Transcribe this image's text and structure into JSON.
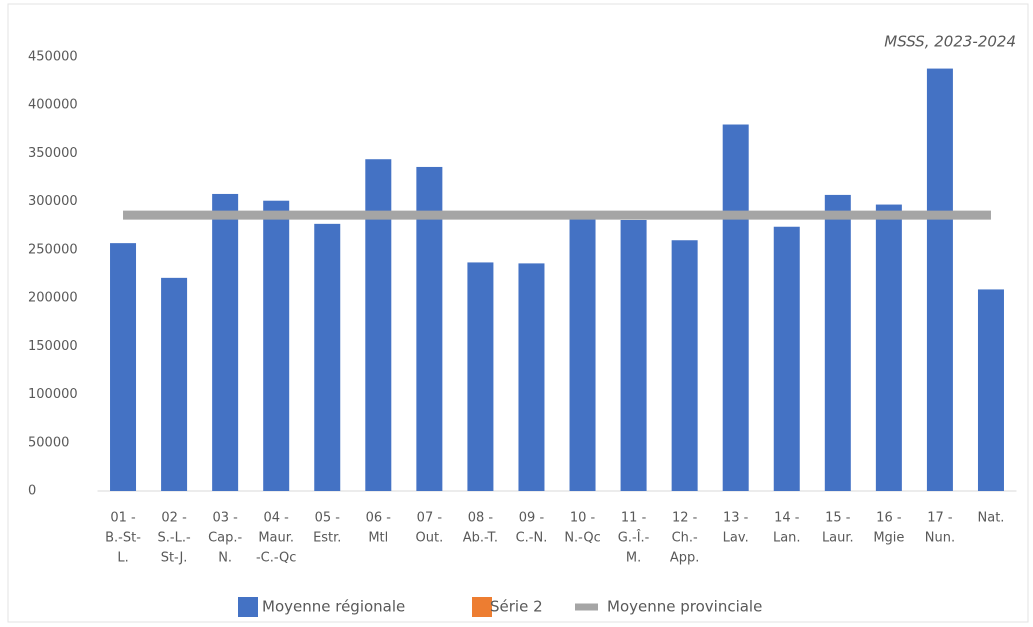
{
  "chart_data": {
    "type": "bar",
    "annotation": "MSSS, 2023-2024",
    "categories": [
      [
        "01 -",
        "B.-St-",
        "L."
      ],
      [
        "02 -",
        "S.-L.-",
        "St-J."
      ],
      [
        "03 -",
        "Cap.-",
        "N."
      ],
      [
        "04 -",
        "Maur.",
        "-C.-Qc"
      ],
      [
        "05 -",
        "Estr."
      ],
      [
        "06 -",
        "Mtl"
      ],
      [
        "07 -",
        "Out."
      ],
      [
        "08 -",
        "Ab.-T."
      ],
      [
        "09 -",
        "C.-N."
      ],
      [
        "10 -",
        "N.-Qc"
      ],
      [
        "11 -",
        "G.-Î.-",
        "M."
      ],
      [
        "12 -",
        "Ch.-",
        "App."
      ],
      [
        "13 -",
        "Lav."
      ],
      [
        "14 -",
        "Lan."
      ],
      [
        "15 -",
        "Laur."
      ],
      [
        "16 -",
        "Mgie"
      ],
      [
        "17 -",
        "Nun."
      ],
      [
        "Nat."
      ]
    ],
    "series": [
      {
        "name": "Moyenne régionale",
        "type": "bar",
        "color": "#4472c4",
        "values": [
          257000,
          221000,
          308000,
          301000,
          277000,
          344000,
          336000,
          237000,
          236000,
          285000,
          281000,
          260000,
          380000,
          274000,
          307000,
          297000,
          438000,
          209000
        ]
      },
      {
        "name": "Série 2",
        "type": "bar",
        "color": "#ed7d31",
        "values": [
          null,
          null,
          null,
          null,
          null,
          null,
          null,
          null,
          null,
          null,
          null,
          null,
          null,
          null,
          null,
          null,
          null,
          null
        ]
      },
      {
        "name": "Moyenne provinciale",
        "type": "line",
        "color": "#a5a5a5",
        "values": [
          286000,
          286000,
          286000,
          286000,
          286000,
          286000,
          286000,
          286000,
          286000,
          286000,
          286000,
          286000,
          286000,
          286000,
          286000,
          286000,
          286000,
          286000
        ]
      }
    ],
    "ylim": [
      0,
      450000
    ],
    "yticks": [
      0,
      50000,
      100000,
      150000,
      200000,
      250000,
      300000,
      350000,
      400000,
      450000
    ],
    "grid": false
  }
}
